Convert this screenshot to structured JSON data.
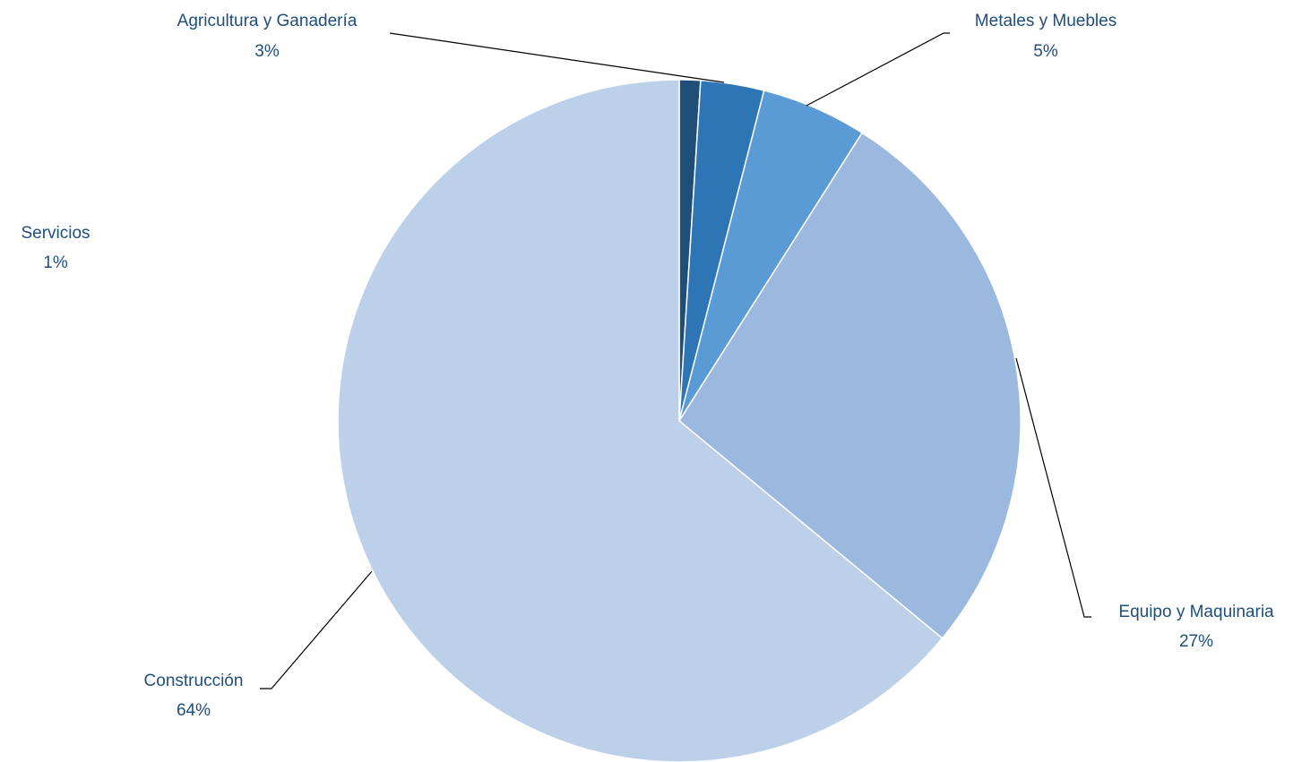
{
  "chart_data": {
    "type": "pie",
    "title": "",
    "slices": [
      {
        "category": "Servicios",
        "value": 1,
        "label": "1%",
        "color": "#1f4e79"
      },
      {
        "category": "Agricultura y Ganadería",
        "value": 3,
        "label": "3%",
        "color": "#2e75b6"
      },
      {
        "category": "Metales y Muebles",
        "value": 5,
        "label": "5%",
        "color": "#5b9bd5"
      },
      {
        "category": "Equipo y Maquinaria",
        "value": 27,
        "label": "27%",
        "color": "#9bb9df"
      },
      {
        "category": "Construcción",
        "value": 64,
        "label": "64%",
        "color": "#bdd0e9"
      }
    ],
    "start_angle": "12 o'clock",
    "direction": "clockwise",
    "legend": "none",
    "data_labels": "outside with leader lines",
    "label_color": "#1f4e79"
  }
}
